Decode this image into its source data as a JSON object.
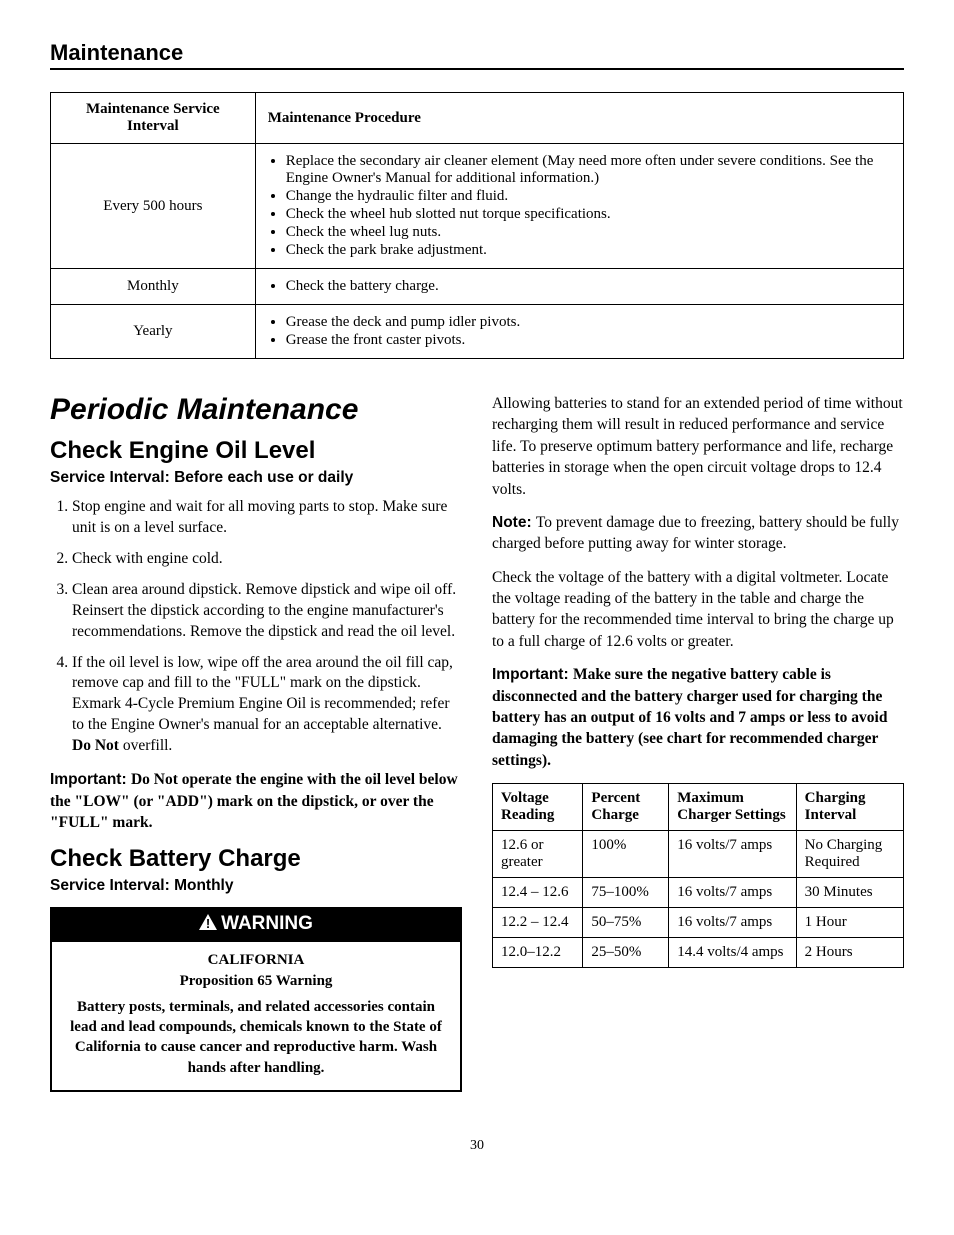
{
  "header": "Maintenance",
  "maintTable": {
    "headers": [
      "Maintenance Service Interval",
      "Maintenance Procedure"
    ],
    "rows": [
      {
        "interval": "Every 500 hours",
        "items": [
          "Replace the secondary air cleaner element (May need more often under severe conditions. See the Engine Owner's Manual for additional information.)",
          "Change the hydraulic filter and fluid.",
          "Check the wheel hub slotted nut torque specifications.",
          "Check the wheel lug nuts.",
          "Check the park brake adjustment."
        ]
      },
      {
        "interval": "Monthly",
        "items": [
          "Check the battery charge."
        ]
      },
      {
        "interval": "Yearly",
        "items": [
          "Grease the deck and pump idler pivots.",
          "Grease the front caster pivots."
        ]
      }
    ]
  },
  "periodic": {
    "title": "Periodic Maintenance",
    "oil": {
      "title": "Check Engine Oil Level",
      "interval": "Service Interval: Before each use or daily",
      "steps": [
        "Stop engine and wait for all moving parts to stop. Make sure unit is on a level surface.",
        "Check with engine cold.",
        "Clean area around dipstick. Remove dipstick and wipe oil off. Reinsert the dipstick according to the engine manufacturer's recommendations. Remove the dipstick and read the oil level."
      ],
      "step4_a": "If the oil level is low, wipe off the area around the oil fill cap, remove cap and fill to the \"FULL\" mark on the dipstick. Exmark 4-Cycle Premium Engine Oil is recommended; refer to the Engine Owner's manual for an acceptable alternative. ",
      "step4_b": "Do Not",
      "step4_c": " overfill.",
      "important_label": "Important: ",
      "important_text": "Do Not operate the engine with the oil level below the \"LOW\" (or \"ADD\") mark on the dipstick, or over the \"FULL\" mark."
    },
    "battery": {
      "title": "Check Battery Charge",
      "interval": "Service Interval: Monthly",
      "warning_head": "WARNING",
      "prop_head1": "CALIFORNIA",
      "prop_head2": "Proposition 65 Warning",
      "prop_text": "Battery posts, terminals, and related accessories contain lead and lead compounds, chemicals known to the State of California to cause cancer and reproductive harm. Wash hands after handling."
    }
  },
  "rightCol": {
    "para1": "Allowing batteries to stand for an extended period of time without recharging them will result in reduced performance and service life. To preserve optimum battery performance and life, recharge batteries in storage when the open circuit voltage drops to 12.4 volts.",
    "note_label": "Note: ",
    "note_text": "To prevent damage due to freezing, battery should be fully charged before putting away for winter storage.",
    "para2": "Check the voltage of the battery with a digital voltmeter. Locate the voltage reading of the battery in the table and charge the battery for the recommended time interval to bring the charge up to a full charge of 12.6 volts or greater.",
    "imp_label": "Important: ",
    "imp_text": "Make sure the negative battery cable is disconnected and the battery charger used for charging the battery has an output of 16 volts and 7 amps or less to avoid damaging the battery (see chart for recommended charger settings)."
  },
  "chargeTable": {
    "headers": [
      "Voltage Reading",
      "Percent Charge",
      "Maximum Charger Settings",
      "Charging Interval"
    ],
    "rows": [
      [
        "12.6 or greater",
        "100%",
        "16 volts/7 amps",
        "No Charging Required"
      ],
      [
        "12.4 – 12.6",
        "75–100%",
        "16 volts/7 amps",
        "30 Minutes"
      ],
      [
        "12.2 – 12.4",
        "50–75%",
        "16 volts/7 amps",
        "1 Hour"
      ],
      [
        "12.0–12.2",
        "25–50%",
        "14.4 volts/4 amps",
        "2 Hours"
      ]
    ]
  },
  "pageNumber": "30"
}
